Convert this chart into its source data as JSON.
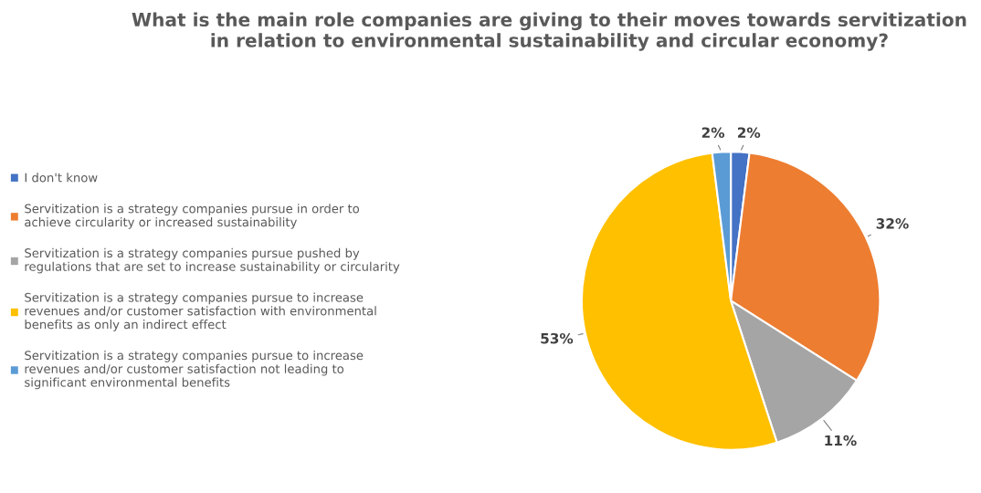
{
  "chart_data": {
    "type": "pie",
    "title": "What is the main role companies are giving to their moves towards servitization\nin relation to environmental sustainability and circular economy?",
    "categories": [
      "I don't know",
      "Servitization is a strategy companies pursue in order to\nachieve circularity or increased sustainability",
      "Servitization is a strategy companies pursue pushed by\nregulations that are set to increase sustainability or circularity",
      "Servitization is a strategy companies pursue to increase\nrevenues and/or customer satisfaction with environmental\nbenefits as only an indirect effect",
      "Servitization is a strategy companies pursue to increase\nrevenues and/or customer satisfaction not leading to\nsignificant environmental benefits"
    ],
    "values": [
      2,
      32,
      11,
      53,
      2
    ],
    "value_labels": [
      "2%",
      "32%",
      "11%",
      "53%",
      "2%"
    ],
    "colors": [
      "#4472c4",
      "#ed7d31",
      "#a5a5a5",
      "#ffc000",
      "#5b9bd5"
    ],
    "legend": "left"
  }
}
